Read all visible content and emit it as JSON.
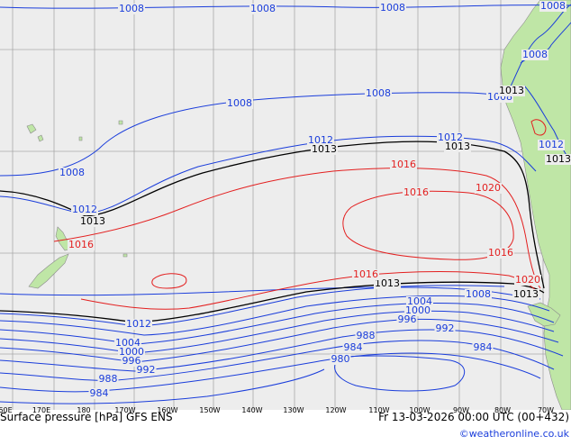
{
  "colors": {
    "ocean": "#ededed",
    "land": "#bfe6a6",
    "coast": "#8c8c8c",
    "grid": "#a9a9a9",
    "isobar_low": "#1a3ddb",
    "isobar_mid": "#000000",
    "isobar_high": "#e31f1f",
    "footer_bg": "#ffffff",
    "credit": "#1a3ddb"
  },
  "footer": {
    "title": "Surface pressure [hPa] GFS ENS",
    "valid": "Fr 13-03-2026 00:00 UTC (00+432)",
    "credit": "©weatheronline.co.uk"
  },
  "axis_ticks": [
    "60E",
    "170E",
    "180",
    "170W",
    "160W",
    "150W",
    "140W",
    "130W",
    "120W",
    "110W",
    "100W",
    "90W",
    "80W",
    "70W"
  ],
  "isobar_labels": [
    {
      "id": "b1",
      "text": "1008",
      "kind": "low"
    },
    {
      "id": "b2",
      "text": "1008",
      "kind": "low"
    },
    {
      "id": "b3",
      "text": "1008",
      "kind": "low"
    },
    {
      "id": "b4",
      "text": "1008",
      "kind": "low"
    },
    {
      "id": "b5",
      "text": "1008",
      "kind": "low"
    },
    {
      "id": "b6",
      "text": "1008",
      "kind": "low"
    },
    {
      "id": "b7",
      "text": "1008",
      "kind": "low"
    },
    {
      "id": "b8",
      "text": "1008",
      "kind": "low"
    },
    {
      "id": "b9",
      "text": "1008",
      "kind": "low"
    },
    {
      "id": "b10",
      "text": "1008",
      "kind": "low"
    },
    {
      "id": "b11",
      "text": "1012",
      "kind": "low"
    },
    {
      "id": "b12",
      "text": "1012",
      "kind": "low"
    },
    {
      "id": "b13",
      "text": "1012",
      "kind": "low"
    },
    {
      "id": "b14",
      "text": "1012",
      "kind": "low"
    },
    {
      "id": "b15",
      "text": "1012",
      "kind": "low"
    },
    {
      "id": "k1",
      "text": "1013",
      "kind": "mid"
    },
    {
      "id": "k2",
      "text": "1013",
      "kind": "mid"
    },
    {
      "id": "k3",
      "text": "1013",
      "kind": "mid"
    },
    {
      "id": "k4",
      "text": "1013",
      "kind": "mid"
    },
    {
      "id": "k5",
      "text": "1013",
      "kind": "mid"
    },
    {
      "id": "k6",
      "text": "1013",
      "kind": "mid"
    },
    {
      "id": "k7",
      "text": "1013",
      "kind": "mid"
    },
    {
      "id": "r1",
      "text": "1016",
      "kind": "high"
    },
    {
      "id": "r2",
      "text": "1016",
      "kind": "high"
    },
    {
      "id": "r3",
      "text": "1016",
      "kind": "high"
    },
    {
      "id": "r4",
      "text": "1016",
      "kind": "high"
    },
    {
      "id": "r5",
      "text": "1016",
      "kind": "high"
    },
    {
      "id": "r6",
      "text": "1020",
      "kind": "high"
    },
    {
      "id": "r7",
      "text": "1020",
      "kind": "high"
    },
    {
      "id": "s1",
      "text": "1004",
      "kind": "low"
    },
    {
      "id": "s2",
      "text": "1004",
      "kind": "low"
    },
    {
      "id": "s3",
      "text": "1000",
      "kind": "low"
    },
    {
      "id": "s4",
      "text": "1000",
      "kind": "low"
    },
    {
      "id": "s5",
      "text": "996",
      "kind": "low"
    },
    {
      "id": "s6",
      "text": "996",
      "kind": "low"
    },
    {
      "id": "s7",
      "text": "992",
      "kind": "low"
    },
    {
      "id": "s8",
      "text": "992",
      "kind": "low"
    },
    {
      "id": "s9",
      "text": "988",
      "kind": "low"
    },
    {
      "id": "s10",
      "text": "988",
      "kind": "low"
    },
    {
      "id": "s11",
      "text": "984",
      "kind": "low"
    },
    {
      "id": "s12",
      "text": "984",
      "kind": "low"
    },
    {
      "id": "s13",
      "text": "984",
      "kind": "low"
    },
    {
      "id": "s14",
      "text": "980",
      "kind": "low"
    }
  ]
}
